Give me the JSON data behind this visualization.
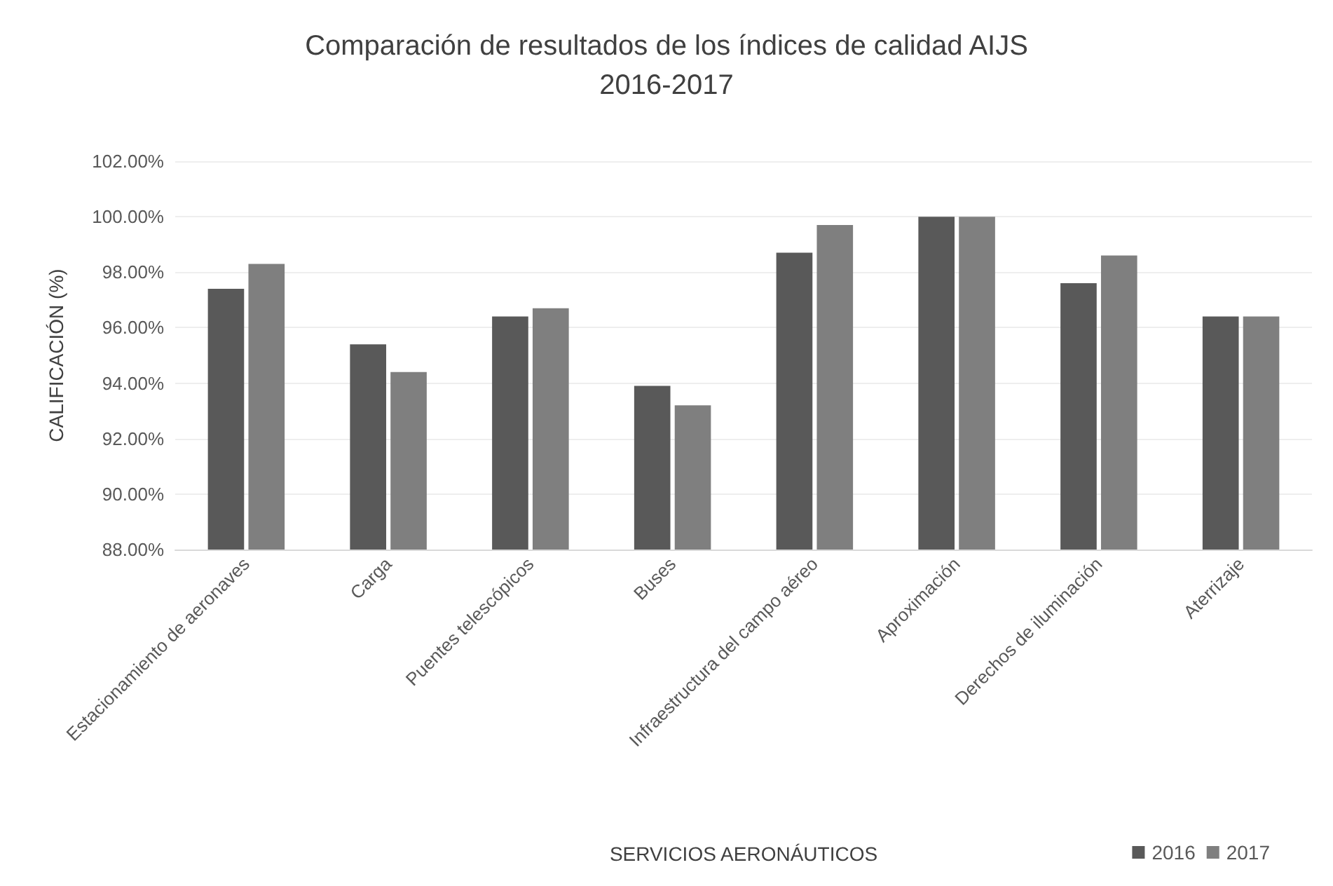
{
  "chart_data": {
    "type": "bar",
    "title": "Comparación de resultados de los índices de calidad AIJS\n2016-2017",
    "xlabel": "SERVICIOS AERONÁUTICOS",
    "ylabel": "CALIFICACIÓN (%)",
    "categories": [
      "Estacionamiento de aeronaves",
      "Carga",
      "Puentes telescópicos",
      "Buses",
      "Infraestructura del campo aéreo",
      "Aproximación",
      "Derechos de iluminación",
      "Aterrizaje"
    ],
    "series": [
      {
        "name": "2016",
        "color": "#595959",
        "values": [
          97.4,
          95.4,
          96.4,
          93.9,
          98.7,
          100.0,
          97.6,
          96.4
        ]
      },
      {
        "name": "2017",
        "color": "#7f7f7f",
        "values": [
          98.3,
          94.4,
          96.7,
          93.2,
          99.7,
          100.0,
          98.6,
          96.4
        ]
      }
    ],
    "ylim": [
      88,
      102
    ],
    "yticks": [
      {
        "value": 88,
        "label": "88.00%"
      },
      {
        "value": 90,
        "label": "90.00%"
      },
      {
        "value": 92,
        "label": "92.00%"
      },
      {
        "value": 94,
        "label": "94.00%"
      },
      {
        "value": 96,
        "label": "96.00%"
      },
      {
        "value": 98,
        "label": "98.00%"
      },
      {
        "value": 100,
        "label": "100.00%"
      },
      {
        "value": 102,
        "label": "102.00%"
      }
    ],
    "grid": "y",
    "legend": "bottom right"
  }
}
